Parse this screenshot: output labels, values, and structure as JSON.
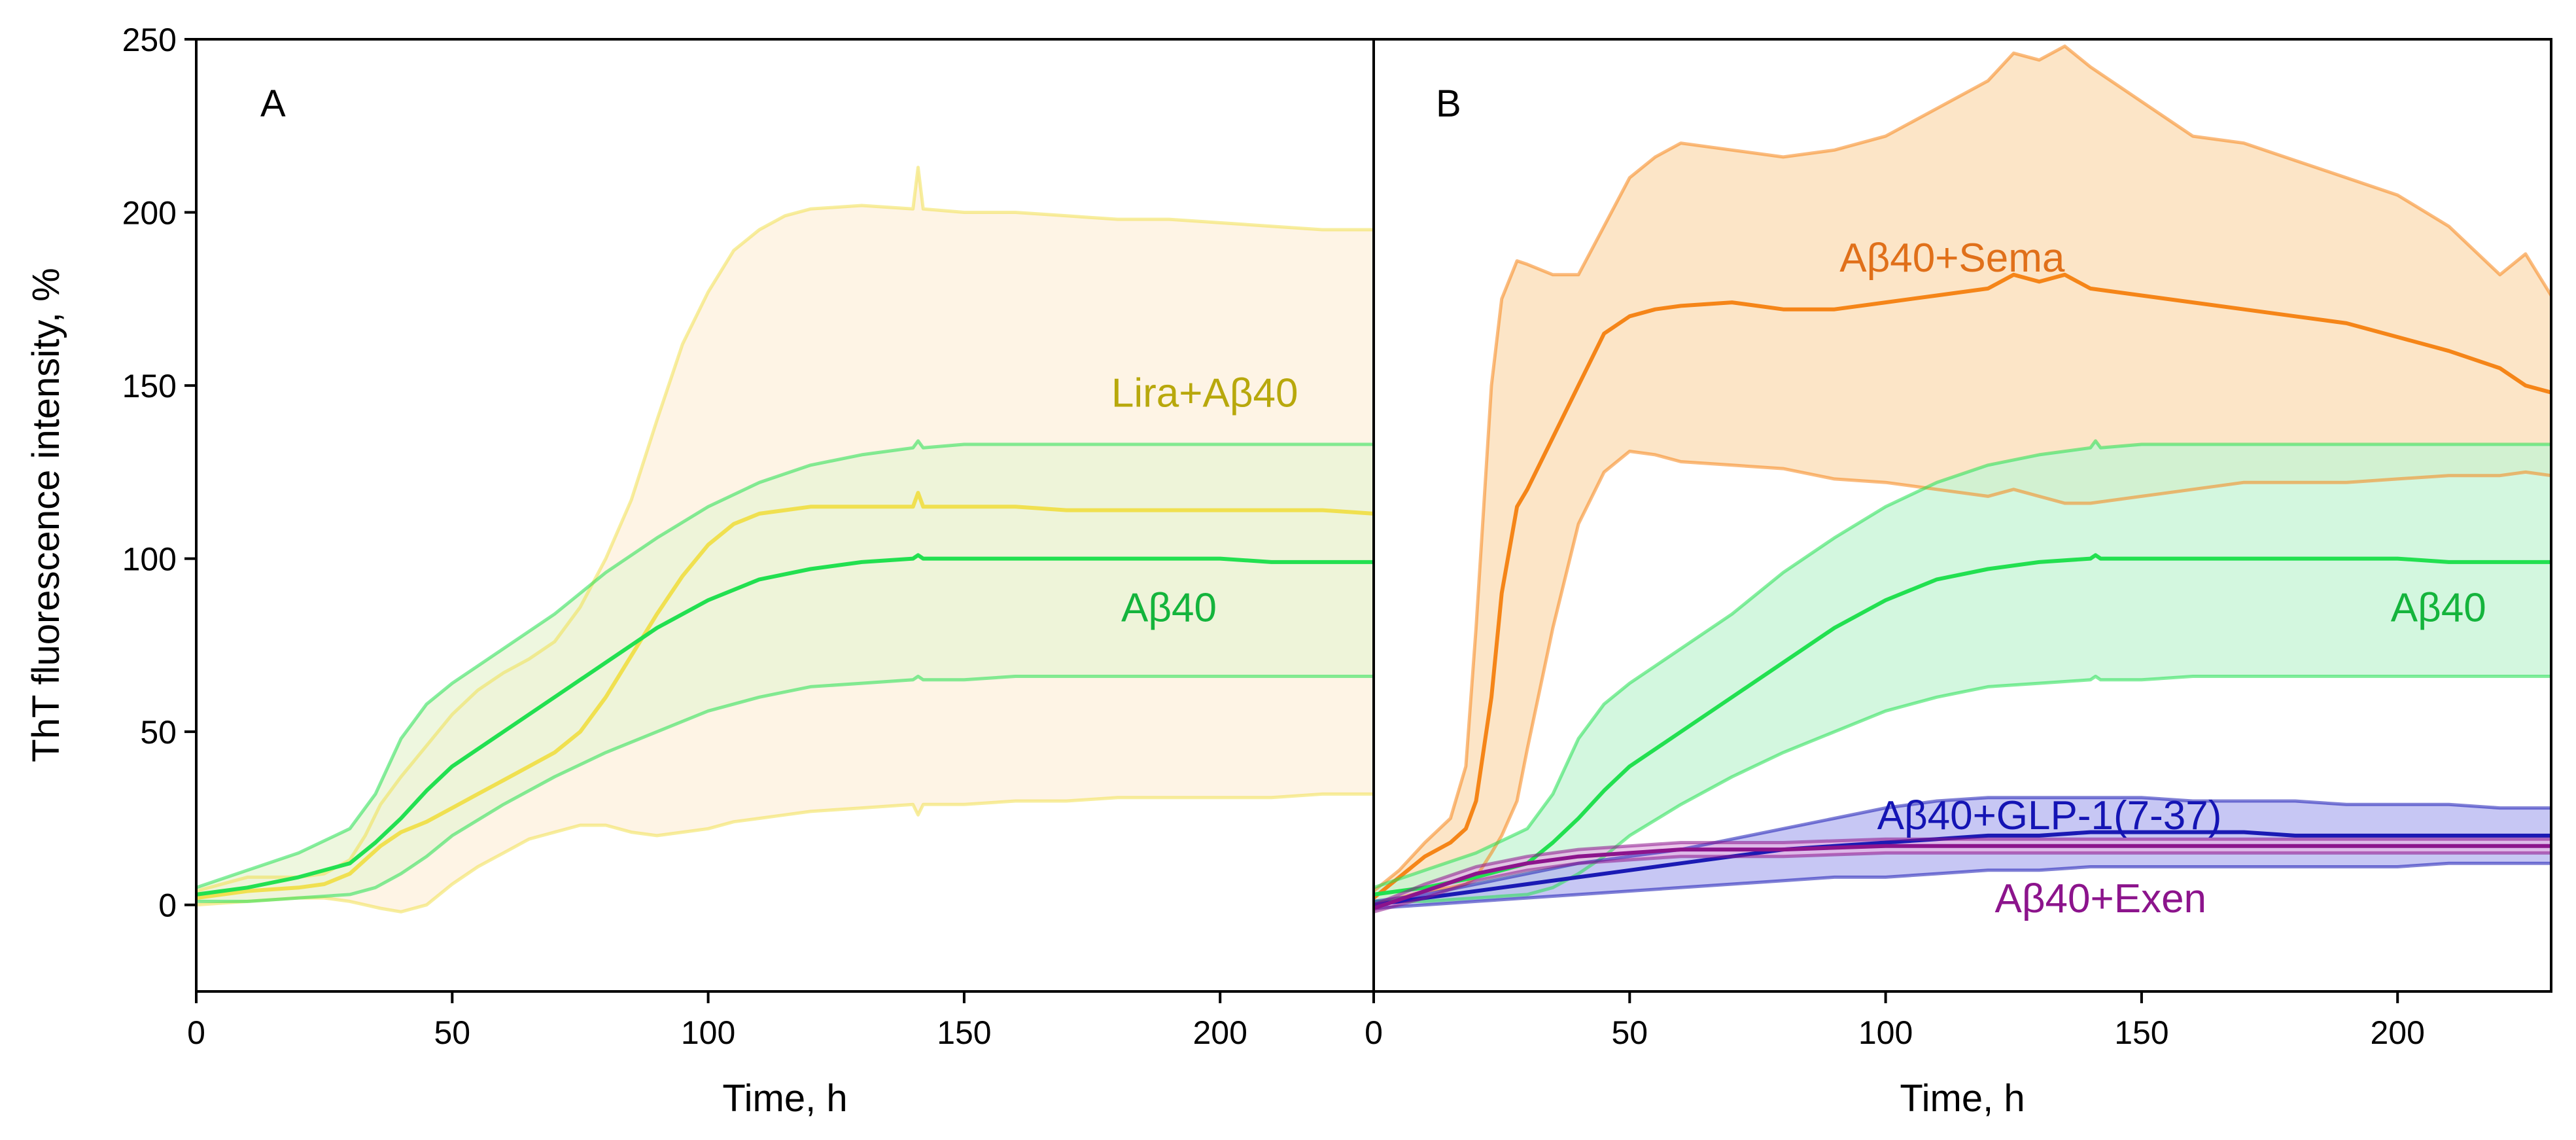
{
  "chart_data": [
    {
      "type": "line",
      "panel": "A",
      "xlabel": "Time, h",
      "ylabel": "ThT fluorescence intensity, %",
      "xlim": [
        0,
        230
      ],
      "ylim": [
        -25,
        250
      ],
      "xticks": [
        0,
        50,
        100,
        150,
        200
      ],
      "yticks": [
        0,
        50,
        100,
        150,
        200,
        250
      ],
      "xtick_labels": [
        "0",
        "50",
        "100",
        "150",
        "200"
      ],
      "ytick_labels": [
        "0",
        "50",
        "100",
        "150",
        "200",
        "250"
      ],
      "grid": false,
      "series": [
        {
          "name": "Lira+Aβ40",
          "label": "Lira+Aβ40",
          "label_pos": [
            197,
            147
          ],
          "color": "#f0e050",
          "band_color": "#fdf0dc",
          "x": [
            0,
            10,
            20,
            25,
            30,
            33,
            36,
            40,
            45,
            50,
            55,
            60,
            65,
            70,
            75,
            80,
            85,
            90,
            95,
            100,
            105,
            110,
            115,
            120,
            130,
            140,
            141,
            142,
            150,
            160,
            170,
            180,
            190,
            200,
            210,
            220,
            230
          ],
          "mean": [
            2,
            4,
            5,
            6,
            9,
            13,
            17,
            21,
            24,
            28,
            32,
            36,
            40,
            44,
            50,
            60,
            72,
            84,
            95,
            104,
            110,
            113,
            114,
            115,
            115,
            115,
            119,
            115,
            115,
            115,
            114,
            114,
            114,
            114,
            114,
            114,
            113
          ],
          "upper": [
            4,
            8,
            8,
            9,
            13,
            20,
            29,
            37,
            46,
            55,
            62,
            67,
            71,
            76,
            86,
            100,
            117,
            140,
            162,
            177,
            189,
            195,
            199,
            201,
            202,
            201,
            213,
            201,
            200,
            200,
            199,
            198,
            198,
            197,
            196,
            195,
            195
          ],
          "lower": [
            0,
            1,
            2,
            2,
            1,
            0,
            -1,
            -2,
            0,
            6,
            11,
            15,
            19,
            21,
            23,
            23,
            21,
            20,
            21,
            22,
            24,
            25,
            26,
            27,
            28,
            29,
            26,
            29,
            29,
            30,
            30,
            31,
            31,
            31,
            31,
            32,
            32
          ]
        },
        {
          "name": "Aβ40",
          "label": "Aβ40",
          "label_pos": [
            190,
            85
          ],
          "color": "#22e050",
          "band_color": "#e8f4d4",
          "x": [
            0,
            10,
            20,
            30,
            35,
            40,
            45,
            50,
            60,
            70,
            80,
            90,
            100,
            110,
            120,
            130,
            140,
            141,
            142,
            150,
            160,
            170,
            180,
            190,
            200,
            210,
            220,
            230
          ],
          "mean": [
            3,
            5,
            8,
            12,
            18,
            25,
            33,
            40,
            50,
            60,
            70,
            80,
            88,
            94,
            97,
            99,
            100,
            101,
            100,
            100,
            100,
            100,
            100,
            100,
            100,
            99,
            99,
            99
          ],
          "upper": [
            5,
            10,
            15,
            22,
            32,
            48,
            58,
            64,
            74,
            84,
            96,
            106,
            115,
            122,
            127,
            130,
            132,
            134,
            132,
            133,
            133,
            133,
            133,
            133,
            133,
            133,
            133,
            133
          ],
          "lower": [
            1,
            1,
            2,
            3,
            5,
            9,
            14,
            20,
            29,
            37,
            44,
            50,
            56,
            60,
            63,
            64,
            65,
            66,
            65,
            65,
            66,
            66,
            66,
            66,
            66,
            66,
            66,
            66
          ]
        }
      ]
    },
    {
      "type": "line",
      "panel": "B",
      "xlabel": "Time, h",
      "ylabel": "",
      "xlim": [
        0,
        230
      ],
      "ylim": [
        -25,
        250
      ],
      "xticks": [
        0,
        50,
        100,
        150,
        200
      ],
      "yticks": [
        0,
        50,
        100,
        150,
        200,
        250
      ],
      "xtick_labels": [
        "0",
        "50",
        "100",
        "150",
        "200"
      ],
      "grid": false,
      "series": [
        {
          "name": "Aβ40+Sema",
          "label": "Aβ40+Sema",
          "label_pos": [
            113,
            186
          ],
          "color": "#f58518",
          "band_color": "#fbdcb4",
          "x": [
            0,
            5,
            10,
            15,
            18,
            20,
            23,
            25,
            28,
            30,
            35,
            40,
            45,
            50,
            55,
            60,
            70,
            80,
            90,
            100,
            110,
            120,
            125,
            130,
            135,
            140,
            150,
            160,
            170,
            180,
            190,
            200,
            210,
            220,
            225,
            230
          ],
          "mean": [
            2,
            8,
            14,
            18,
            22,
            30,
            60,
            90,
            115,
            120,
            135,
            150,
            165,
            170,
            172,
            173,
            174,
            172,
            172,
            174,
            176,
            178,
            182,
            180,
            182,
            178,
            176,
            174,
            172,
            170,
            168,
            164,
            160,
            155,
            150,
            148
          ],
          "upper": [
            4,
            10,
            18,
            25,
            40,
            80,
            150,
            175,
            186,
            185,
            182,
            182,
            196,
            210,
            216,
            220,
            218,
            216,
            218,
            222,
            230,
            238,
            246,
            244,
            248,
            242,
            232,
            222,
            220,
            215,
            210,
            205,
            196,
            182,
            188,
            176
          ],
          "lower": [
            0,
            2,
            4,
            5,
            6,
            8,
            15,
            20,
            30,
            45,
            80,
            110,
            125,
            131,
            130,
            128,
            127,
            126,
            123,
            122,
            120,
            118,
            120,
            118,
            116,
            116,
            118,
            120,
            122,
            122,
            122,
            123,
            124,
            124,
            125,
            124
          ]
        },
        {
          "name": "Aβ40",
          "label": "Aβ40",
          "label_pos": [
            208,
            85
          ],
          "color": "#22e050",
          "band_color": "#c4f4d4",
          "x": [
            0,
            10,
            20,
            30,
            35,
            40,
            45,
            50,
            60,
            70,
            80,
            90,
            100,
            110,
            120,
            130,
            140,
            141,
            142,
            150,
            160,
            170,
            180,
            190,
            200,
            210,
            220,
            230
          ],
          "mean": [
            3,
            5,
            8,
            12,
            18,
            25,
            33,
            40,
            50,
            60,
            70,
            80,
            88,
            94,
            97,
            99,
            100,
            101,
            100,
            100,
            100,
            100,
            100,
            100,
            100,
            99,
            99,
            99
          ],
          "upper": [
            5,
            10,
            15,
            22,
            32,
            48,
            58,
            64,
            74,
            84,
            96,
            106,
            115,
            122,
            127,
            130,
            132,
            134,
            132,
            133,
            133,
            133,
            133,
            133,
            133,
            133,
            133,
            133
          ],
          "lower": [
            1,
            1,
            2,
            3,
            5,
            9,
            14,
            20,
            29,
            37,
            44,
            50,
            56,
            60,
            63,
            64,
            65,
            66,
            65,
            65,
            66,
            66,
            66,
            66,
            66,
            66,
            66,
            66
          ]
        },
        {
          "name": "Aβ40+GLP-1(7-37)",
          "label": "Aβ40+GLP-1(7-37)",
          "label_pos": [
            132,
            25
          ],
          "color": "#1a1ab4",
          "band_color": "#b4b4f0",
          "x": [
            0,
            10,
            20,
            30,
            40,
            50,
            60,
            70,
            80,
            90,
            100,
            110,
            120,
            130,
            140,
            150,
            160,
            170,
            180,
            190,
            200,
            210,
            220,
            230
          ],
          "mean": [
            0,
            2,
            4,
            6,
            8,
            10,
            12,
            14,
            16,
            17,
            18,
            19,
            20,
            20,
            21,
            21,
            21,
            21,
            20,
            20,
            20,
            20,
            20,
            20
          ],
          "upper": [
            1,
            3,
            6,
            9,
            12,
            14,
            16,
            19,
            22,
            25,
            28,
            30,
            31,
            31,
            31,
            31,
            30,
            30,
            30,
            29,
            29,
            29,
            28,
            28
          ],
          "lower": [
            -1,
            0,
            1,
            2,
            3,
            4,
            5,
            6,
            7,
            8,
            8,
            9,
            10,
            10,
            11,
            11,
            11,
            11,
            11,
            11,
            11,
            12,
            12,
            12
          ]
        },
        {
          "name": "Aβ40+Exen",
          "label": "Aβ40+Exen",
          "label_pos": [
            142,
            1
          ],
          "color": "#8c148c",
          "band_color": "#e4b4e4",
          "x": [
            0,
            10,
            20,
            30,
            40,
            50,
            60,
            80,
            100,
            120,
            140,
            160,
            180,
            200,
            230
          ],
          "mean": [
            -1,
            4,
            9,
            12,
            14,
            15,
            16,
            16,
            17,
            17,
            17,
            17,
            17,
            17,
            17
          ],
          "upper": [
            0,
            6,
            11,
            14,
            16,
            17,
            18,
            18,
            19,
            19,
            19,
            19,
            19,
            19,
            19
          ],
          "lower": [
            -2,
            2,
            7,
            10,
            12,
            13,
            14,
            14,
            15,
            15,
            15,
            15,
            15,
            15,
            15
          ]
        }
      ]
    }
  ]
}
